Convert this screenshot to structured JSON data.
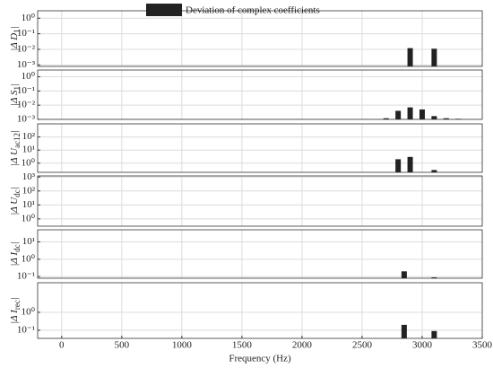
{
  "chart_data": [
    {
      "type": "bar",
      "legend_label": "Deviation of complex coefficients",
      "color": "#222222",
      "log_scale": true,
      "grid": true,
      "ylabel": {
        "main": "|Δ D",
        "sub": "1",
        "end": "|"
      },
      "x": [
        2900,
        3100
      ],
      "values": [
        0.012,
        0.011
      ],
      "xlim": [
        -200,
        3500
      ],
      "xticks": [
        0,
        500,
        1000,
        1500,
        2000,
        2500,
        3000,
        3500
      ],
      "ylim": [
        0.0008,
        3
      ],
      "yticks": [
        {
          "value": 0.001,
          "label": "10⁻³"
        },
        {
          "value": 0.01,
          "label": "10⁻²"
        },
        {
          "value": 0.1,
          "label": "10⁻¹"
        },
        {
          "value": 1,
          "label": "10⁰"
        }
      ]
    },
    {
      "type": "bar",
      "color": "#222222",
      "log_scale": true,
      "grid": true,
      "ylabel": {
        "main": "|Δ S",
        "sub": "1",
        "end": "|"
      },
      "x": [
        2700,
        2800,
        2900,
        3000,
        3100,
        3200,
        3300
      ],
      "values": [
        0.0012,
        0.004,
        0.007,
        0.005,
        0.0017,
        0.0012,
        0.0011
      ],
      "xlim": [
        -200,
        3500
      ],
      "xticks": [
        0,
        500,
        1000,
        1500,
        2000,
        2500,
        3000,
        3500
      ],
      "ylim": [
        0.001,
        3
      ],
      "yticks": [
        {
          "value": 0.001,
          "label": "10⁻³"
        },
        {
          "value": 0.01,
          "label": "10⁻²"
        },
        {
          "value": 0.1,
          "label": "10⁻¹"
        },
        {
          "value": 1,
          "label": "10⁰"
        }
      ]
    },
    {
      "type": "bar",
      "color": "#222222",
      "log_scale": true,
      "grid": true,
      "ylabel": {
        "main": "|Δ U",
        "sub": "ac12",
        "end": "|"
      },
      "x": [
        2800,
        2900,
        3100
      ],
      "values": [
        2,
        3,
        0.3
      ],
      "xlim": [
        -200,
        3500
      ],
      "xticks": [
        0,
        500,
        1000,
        1500,
        2000,
        2500,
        3000,
        3500
      ],
      "ylim": [
        0.2,
        1000
      ],
      "yticks": [
        {
          "value": 1,
          "label": "10⁰"
        },
        {
          "value": 10,
          "label": "10¹"
        },
        {
          "value": 100,
          "label": "10²"
        }
      ]
    },
    {
      "type": "bar",
      "color": "#222222",
      "log_scale": true,
      "grid": true,
      "ylabel": {
        "main": "|Δ U",
        "sub": "dc",
        "end": "|"
      },
      "x": [],
      "values": [],
      "xlim": [
        -200,
        3500
      ],
      "xticks": [
        0,
        500,
        1000,
        1500,
        2000,
        2500,
        3000,
        3500
      ],
      "ylim": [
        0.3,
        1200
      ],
      "yticks": [
        {
          "value": 1,
          "label": "10⁰"
        },
        {
          "value": 10,
          "label": "10¹"
        },
        {
          "value": 100,
          "label": "10²"
        },
        {
          "value": 1000,
          "label": "10³"
        }
      ]
    },
    {
      "type": "bar",
      "color": "#222222",
      "log_scale": true,
      "grid": true,
      "ylabel": {
        "main": "|Δ I",
        "sub": "dc",
        "end": "|"
      },
      "x": [
        2850,
        3100
      ],
      "values": [
        0.2,
        0.09
      ],
      "xlim": [
        -200,
        3500
      ],
      "xticks": [
        0,
        500,
        1000,
        1500,
        2000,
        2500,
        3000,
        3500
      ],
      "ylim": [
        0.08,
        50
      ],
      "yticks": [
        {
          "value": 0.1,
          "label": "10⁻¹"
        },
        {
          "value": 1,
          "label": "10⁰"
        },
        {
          "value": 10,
          "label": "10¹"
        }
      ]
    },
    {
      "type": "bar",
      "color": "#222222",
      "log_scale": true,
      "grid": true,
      "ylabel": {
        "main": "|Δ I",
        "sub": "rec",
        "end": "|"
      },
      "x": [
        2850,
        3100
      ],
      "values": [
        0.2,
        0.09
      ],
      "xlim": [
        -200,
        3500
      ],
      "xticks": [
        0,
        500,
        1000,
        1500,
        2000,
        2500,
        3000,
        3500
      ],
      "xlabel": "Frequency (Hz)",
      "ylim": [
        0.035,
        45
      ],
      "yticks": [
        {
          "value": 0.1,
          "label": "10⁻¹"
        },
        {
          "value": 1,
          "label": "10⁰"
        }
      ]
    }
  ]
}
